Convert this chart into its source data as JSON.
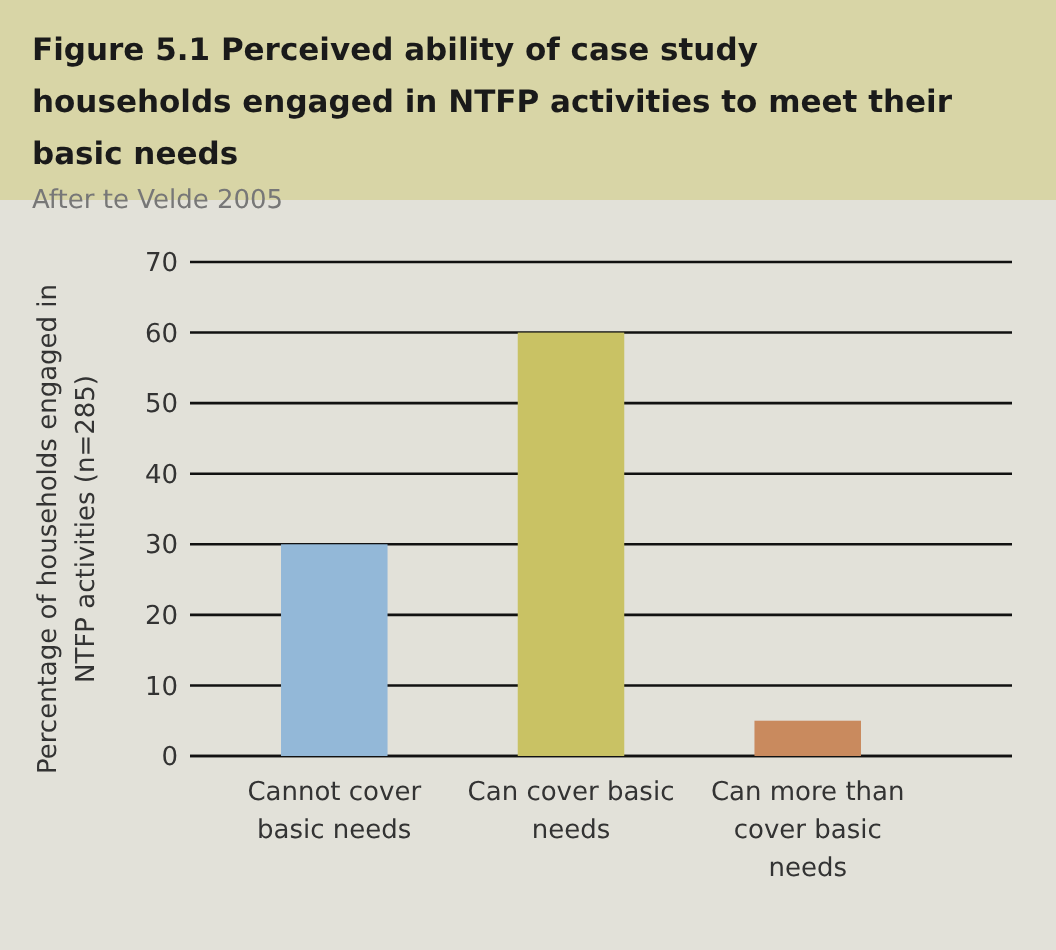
{
  "chart_data": {
    "type": "bar",
    "title": "Figure 5.1  Perceived ability of case study households engaged in NTFP activities to meet their basic needs",
    "subtitle": "After te Velde 2005",
    "ylabel": "Percentage of households engaged in NTFP activities (n=285)",
    "categories": [
      "Cannot cover basic needs",
      "Can cover basic needs",
      "Can more than cover basic needs"
    ],
    "values": [
      30,
      60,
      5
    ],
    "colors": [
      "#93b8d8",
      "#c9c264",
      "#c98a5e"
    ],
    "ylim": [
      0,
      70
    ],
    "yticks": [
      0,
      10,
      20,
      30,
      40,
      50,
      60,
      70
    ],
    "grid": "y"
  }
}
